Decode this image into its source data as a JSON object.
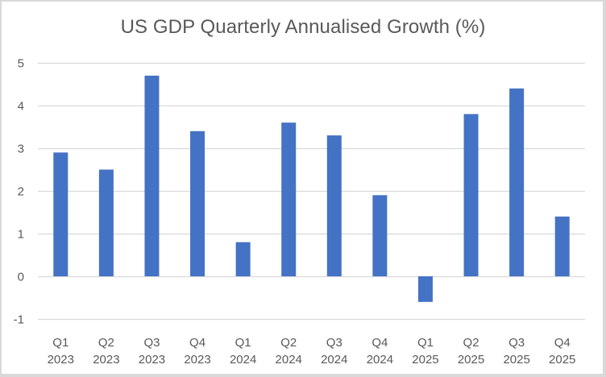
{
  "chart_data": {
    "type": "bar",
    "title": "US GDP Quarterly Annualised Growth (%)",
    "xlabel": "",
    "ylabel": "",
    "categories": [
      [
        "Q1",
        "2023"
      ],
      [
        "Q2",
        "2023"
      ],
      [
        "Q3",
        "2023"
      ],
      [
        "Q4",
        "2023"
      ],
      [
        "Q1",
        "2024"
      ],
      [
        "Q2",
        "2024"
      ],
      [
        "Q3",
        "2024"
      ],
      [
        "Q4",
        "2024"
      ],
      [
        "Q1",
        "2025"
      ],
      [
        "Q2",
        "2025"
      ],
      [
        "Q3",
        "2025"
      ],
      [
        "Q4",
        "2025"
      ]
    ],
    "values": [
      2.9,
      2.5,
      4.7,
      3.4,
      0.8,
      3.6,
      3.3,
      1.9,
      -0.6,
      3.8,
      4.4,
      1.4
    ],
    "ylim": [
      -1,
      5
    ],
    "yticks": [
      5,
      4,
      3,
      2,
      1,
      0,
      -1
    ],
    "grid": true,
    "legend": "none",
    "colors": {
      "bar": "#4472C4",
      "grid": "#d9d9d9",
      "text": "#595959"
    }
  }
}
